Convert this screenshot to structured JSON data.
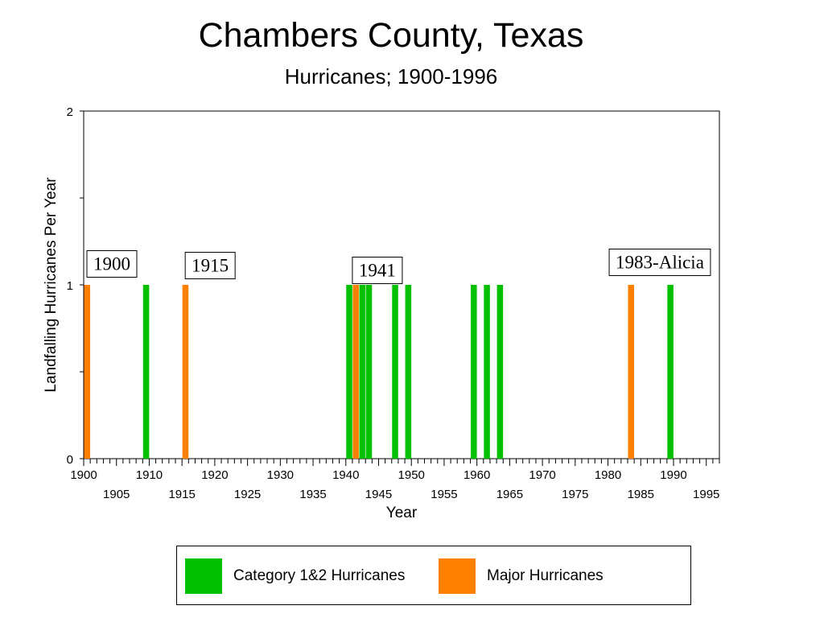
{
  "chart_data": {
    "type": "bar",
    "title": "Chambers County, Texas",
    "subtitle": "Hurricanes;  1900-1996",
    "xlabel": "Year",
    "ylabel": "Landfalling Hurricanes Per Year",
    "xlim": [
      1900,
      1997
    ],
    "ylim": [
      0,
      2
    ],
    "y_ticks": [
      "0",
      "1",
      "2"
    ],
    "x_ticks_upper": [
      "1900",
      "1910",
      "1920",
      "1930",
      "1940",
      "1950",
      "1960",
      "1970",
      "1980",
      "1990"
    ],
    "x_ticks_lower": [
      "1905",
      "1915",
      "1925",
      "1935",
      "1945",
      "1955",
      "1965",
      "1975",
      "1985",
      "1995"
    ],
    "grid": false,
    "legend_position": "bottom",
    "colors": {
      "category_1_2": "#00c000",
      "major": "#ff8000"
    },
    "series": [
      {
        "name": "Category 1&2 Hurricanes",
        "color": "#00c000",
        "x": [
          1909,
          1940,
          1942,
          1943,
          1947,
          1949,
          1959,
          1961,
          1963,
          1989
        ],
        "values": [
          1,
          1,
          1,
          1,
          1,
          1,
          1,
          1,
          1,
          1
        ]
      },
      {
        "name": "Major Hurricanes",
        "color": "#ff8000",
        "x": [
          1900,
          1915,
          1941,
          1983
        ],
        "values": [
          1,
          1,
          1,
          1
        ]
      }
    ],
    "annotations": [
      {
        "text": "1900",
        "year": 1900
      },
      {
        "text": "1915",
        "year": 1915
      },
      {
        "text": "1941",
        "year": 1941
      },
      {
        "text": "1983-Alicia",
        "year": 1983
      }
    ]
  }
}
